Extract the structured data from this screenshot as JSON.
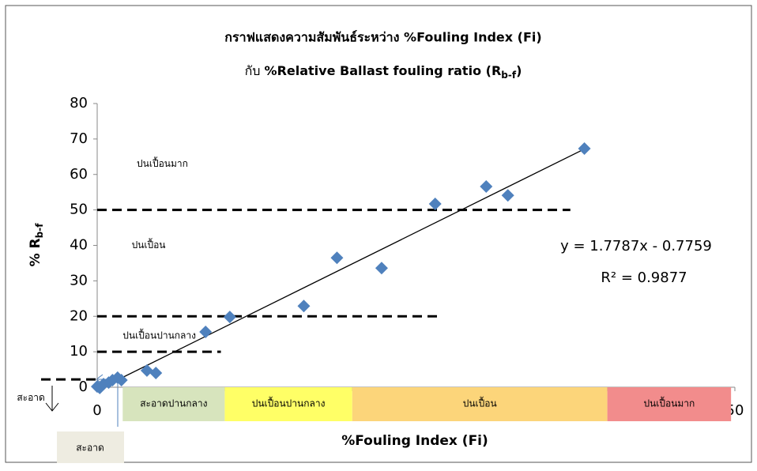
{
  "chart_data": {
    "type": "scatter",
    "title": "กราฟแสดงความสัมพันธ์ระหว่าง %Fouling Index (Fi)",
    "subtitle": {
      "prefix": "กับ  ",
      "main": "%Relative Ballast fouling ratio (R",
      "sub": "b-f",
      "suffix": ")"
    },
    "x_label": "%Fouling Index (Fi)",
    "y_label": {
      "main": "% R",
      "sub": "b-f"
    },
    "x": [
      0,
      0.2,
      0.5,
      0.9,
      1.2,
      1.6,
      1.9,
      3.9,
      4.6,
      8.5,
      10.4,
      16.2,
      18.8,
      22.3,
      26.5,
      30.5,
      32.2,
      38.2
    ],
    "values": [
      0.2,
      -0.2,
      0.9,
      1.3,
      2.0,
      2.7,
      2.0,
      4.7,
      4.0,
      15.6,
      19.8,
      22.9,
      36.5,
      33.6,
      51.7,
      56.6,
      54.1,
      67.3
    ],
    "color": "#4f81bd",
    "xlim": [
      0,
      50
    ],
    "xticks": [
      0,
      10,
      20,
      30,
      40,
      50
    ],
    "ylim": [
      0,
      80
    ],
    "yticks": [
      0,
      10,
      20,
      30,
      40,
      50,
      60,
      70,
      80
    ],
    "trendline": {
      "slope": 1.7787,
      "intercept": -0.7759,
      "xrange": [
        0.5,
        38.2
      ],
      "equation": "y = 1.7787x - 0.7759",
      "r2": "R² = 0.9877"
    },
    "threshold_lines": [
      {
        "y": 50,
        "x": [
          0,
          37.1
        ]
      },
      {
        "y": 20,
        "x": [
          0,
          27
        ]
      },
      {
        "y": 10,
        "x": [
          0,
          9.7
        ]
      },
      {
        "y": 2.2,
        "x": [
          -4.4,
          0
        ]
      }
    ],
    "region_labels": [
      {
        "label": "ปนเปื้อนมาก",
        "x": 3.1,
        "y": 63
      },
      {
        "label": "ปนเปื้อน",
        "x": 2.7,
        "y": 40
      },
      {
        "label": "ปนเปื้อนปานกลาง",
        "x": 2,
        "y": 14.5
      },
      {
        "label": "สะอาด",
        "x": -6.3,
        "y": -3
      }
    ],
    "zones": [
      {
        "label": "สะอาดปานกลาง",
        "x": [
          2,
          10
        ],
        "color": "#d7e4bd"
      },
      {
        "label": "ปนเปื้อนปานกลาง",
        "x": [
          10,
          20
        ],
        "color": "#ffff66"
      },
      {
        "label": "ปนเปื้อน",
        "x": [
          20,
          40
        ],
        "color": "#fcd57a"
      },
      {
        "label": "ปนเปื้อนมาก",
        "x": [
          40,
          49.7
        ],
        "color": "#f28c8c"
      }
    ],
    "clean_box": "สะอาด"
  }
}
